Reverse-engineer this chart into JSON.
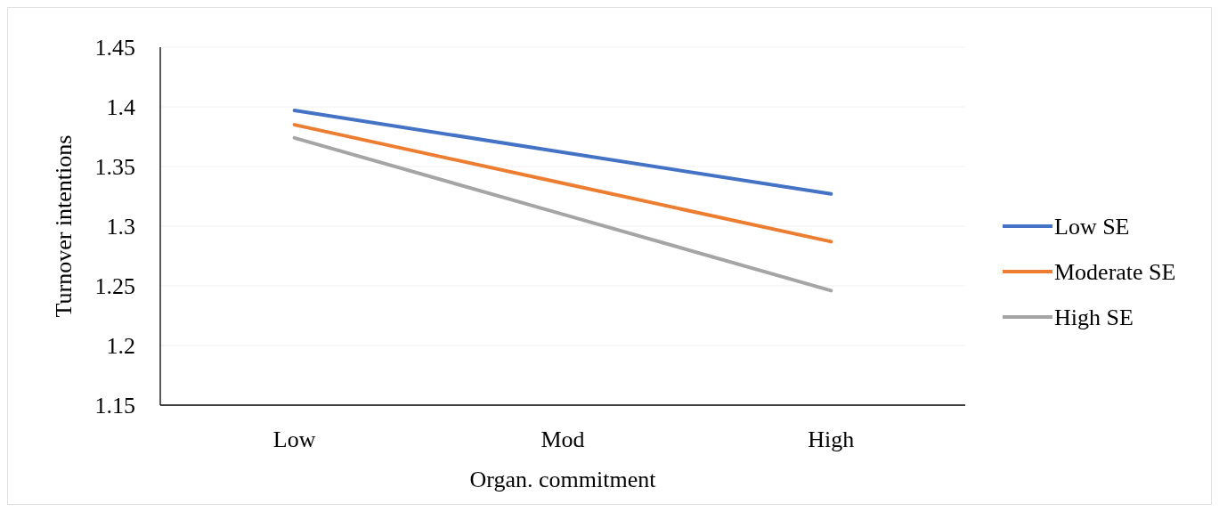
{
  "chart_data": {
    "type": "line",
    "xlabel": "Organ. commitment",
    "ylabel": "Turnover intentions",
    "categories": [
      "Low",
      "Mod",
      "High"
    ],
    "series": [
      {
        "name": "Low SE",
        "color": "#4472c4",
        "values": [
          1.397,
          1.362,
          1.327
        ]
      },
      {
        "name": "Moderate SE",
        "color": "#ed7d31",
        "values": [
          1.385,
          1.336,
          1.287
        ]
      },
      {
        "name": "High SE",
        "color": "#a5a5a5",
        "values": [
          1.374,
          1.31,
          1.246
        ]
      }
    ],
    "ylim": [
      1.15,
      1.45
    ],
    "yticks": [
      1.15,
      1.2,
      1.25,
      1.3,
      1.35,
      1.4,
      1.45
    ],
    "grid": "y",
    "legend": "right",
    "marker": "none",
    "line_style": "solid"
  }
}
